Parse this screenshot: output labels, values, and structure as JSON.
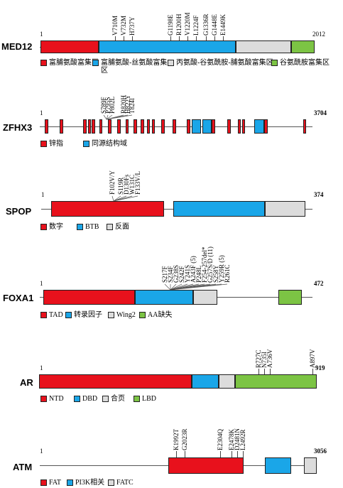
{
  "colors": {
    "red": "#e8111c",
    "blue": "#1aa6e8",
    "gray": "#dcdcdc",
    "green": "#7cc444"
  },
  "genes": [
    {
      "name": "MED12",
      "start": "1",
      "end": "2012",
      "mutations": [
        "V710M",
        "V732M",
        "H737Y",
        "G1198E",
        "R1200H",
        "V1220M",
        "L1224F",
        "G1336R",
        "G1448E",
        "E1449K"
      ],
      "legend": [
        {
          "color": "red",
          "label": "富脯氨酸富集区"
        },
        {
          "color": "blue",
          "label": "富脯氨酸-丝氨酸富集区"
        },
        {
          "color": "gray",
          "label": "丙氨酸-谷氨酰胺-脯氨酸富集区"
        },
        {
          "color": "green",
          "label": "谷氨酰胺富集区"
        }
      ]
    },
    {
      "name": "ZFHX3",
      "start": "1",
      "end": "3704",
      "mutations": [
        "S789F",
        "P795S",
        "P802L",
        "R820H",
        "H822Y",
        "T824I"
      ],
      "legend": [
        {
          "color": "red",
          "label": "锌指"
        },
        {
          "color": "blue",
          "label": "同源结构域"
        }
      ]
    },
    {
      "name": "SPOP",
      "start": "1",
      "end": "374",
      "mutations": [
        "F102V/Y",
        "S119R",
        "D130Fs",
        "W131C",
        "F133V/L"
      ],
      "legend": [
        {
          "color": "red",
          "label": "数字"
        },
        {
          "color": "blue",
          "label": "BTB"
        },
        {
          "color": "gray",
          "label": "反面"
        }
      ]
    },
    {
      "name": "FOXA1",
      "start": "1",
      "end": "472",
      "mutations": [
        "S217F",
        "S234F",
        "G238S",
        "S242F",
        "Y241S",
        "A243F (5)",
        "P248L",
        "F254-257del*",
        "G257S/D (11)",
        "S258Y",
        "Y259R (5)",
        "R261C"
      ],
      "legend": [
        {
          "color": "red",
          "label": "TAD"
        },
        {
          "color": "blue",
          "label": "转录因子"
        },
        {
          "color": "gray",
          "label": "Wing2"
        },
        {
          "color": "green",
          "label": "AA缺失"
        }
      ]
    },
    {
      "name": "AR",
      "start": "1",
      "end": "919",
      "mutations": [
        "R727C",
        "N735I",
        "A736V",
        "A897V"
      ],
      "legend": [
        {
          "color": "red",
          "label": "NTD"
        },
        {
          "color": "blue",
          "label": "DBD"
        },
        {
          "color": "gray",
          "label": "合页"
        },
        {
          "color": "green",
          "label": "LBD"
        }
      ]
    },
    {
      "name": "ATM",
      "start": "1",
      "end": "3056",
      "mutations": [
        "K1992T",
        "G2023R",
        "E2304Q",
        "E2478K",
        "D2481N",
        "L2492R"
      ],
      "legend": [
        {
          "color": "red",
          "label": "FAT"
        },
        {
          "color": "blue",
          "label": "PI3K相关"
        },
        {
          "color": "gray",
          "label": "FATC"
        }
      ]
    }
  ]
}
